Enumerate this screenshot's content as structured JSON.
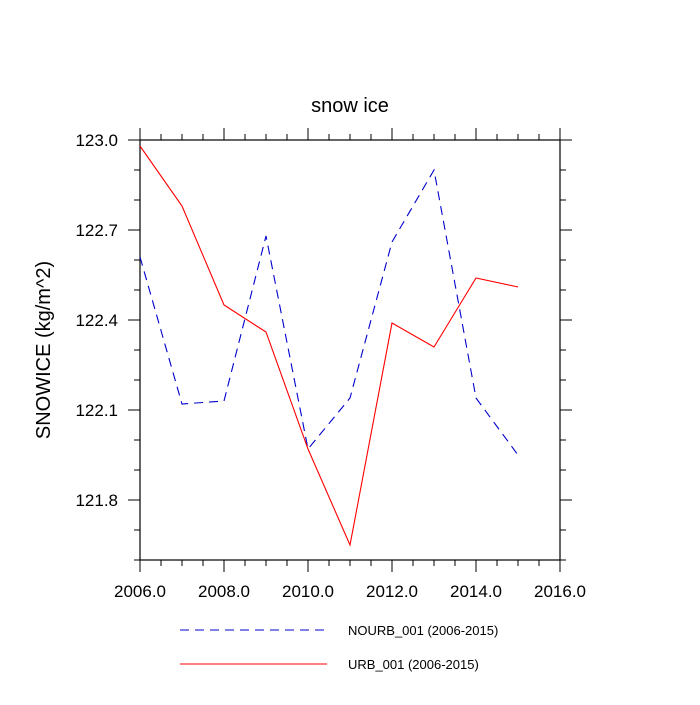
{
  "chart_data": {
    "type": "line",
    "title": "snow ice",
    "xlabel": "",
    "ylabel": "SNOWICE  (kg/m^2)",
    "xlim": [
      2006.0,
      2016.0
    ],
    "ylim": [
      121.6,
      123.0
    ],
    "x_ticks": [
      "2006.0",
      "2008.0",
      "2010.0",
      "2012.0",
      "2014.0",
      "2016.0"
    ],
    "y_ticks": [
      "121.8",
      "122.1",
      "122.4",
      "122.7",
      "123.0"
    ],
    "grid": false,
    "legend_position": "bottom",
    "x": [
      2006,
      2007,
      2008,
      2009,
      2010,
      2011,
      2012,
      2013,
      2014,
      2015
    ],
    "series": [
      {
        "name": "NOURB_001 (2006-2015)",
        "color": "#0000cc",
        "dashed": true,
        "values": [
          122.61,
          122.12,
          122.13,
          122.68,
          121.97,
          122.14,
          122.66,
          122.9,
          122.14,
          121.95
        ]
      },
      {
        "name": "URB_001 (2006-2015)",
        "color": "#ff0000",
        "dashed": false,
        "values": [
          122.98,
          122.78,
          122.45,
          122.36,
          121.97,
          121.65,
          122.39,
          122.31,
          122.54,
          122.51
        ]
      }
    ]
  }
}
